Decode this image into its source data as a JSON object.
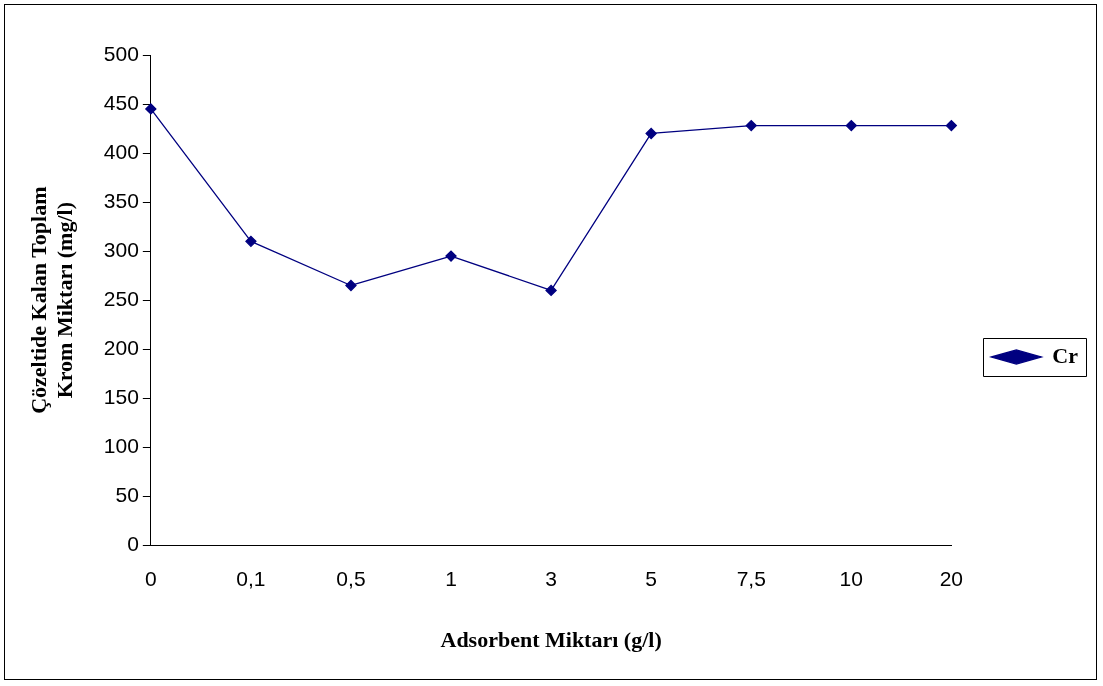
{
  "chart_data": {
    "type": "line",
    "xlabel": "Adsorbent Miktarı (g/l)",
    "ylabel": "Çözeltide Kalan Toplam\nKrom Miktarı (mg/l)",
    "categories": [
      "0",
      "0,1",
      "0,5",
      "1",
      "3",
      "5",
      "7,5",
      "10",
      "20"
    ],
    "series": [
      {
        "name": "Cr",
        "color": "#000080",
        "values": [
          445,
          310,
          265,
          295,
          260,
          420,
          428,
          428,
          428
        ]
      }
    ],
    "ylim": [
      0,
      500
    ],
    "yticks": [
      0,
      50,
      100,
      150,
      200,
      250,
      300,
      350,
      400,
      450,
      500
    ],
    "grid": false,
    "legend": "right",
    "marker": "diamond",
    "line_style": "solid"
  }
}
